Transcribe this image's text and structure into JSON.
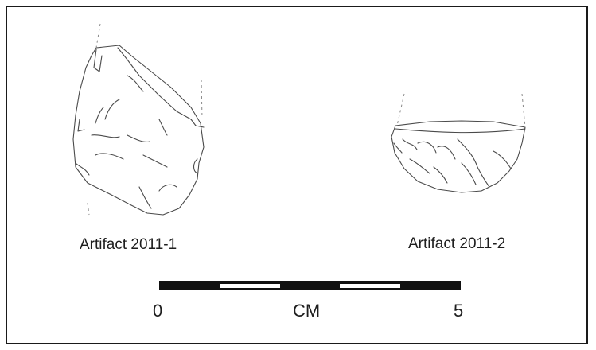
{
  "artifacts": [
    {
      "label": "Artifact 2011-1"
    },
    {
      "label": "Artifact 2011-2"
    }
  ],
  "scale_bar": {
    "start_label": "0",
    "unit_label": "CM",
    "end_label": "5",
    "segments": 5
  },
  "colors": {
    "ink": "#1e1e1e",
    "frame": "#1a1a1a",
    "sketch": "#5a5a5a"
  }
}
